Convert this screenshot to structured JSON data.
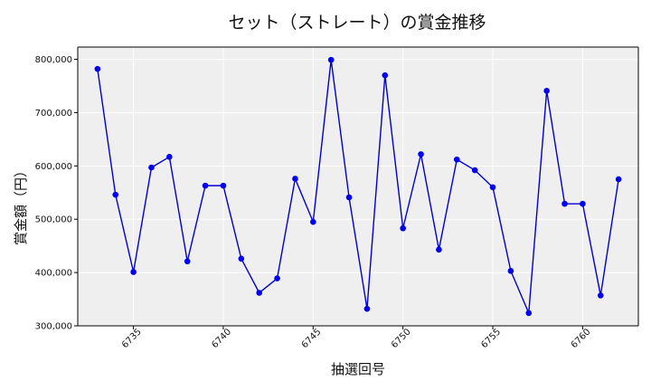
{
  "chart_data": {
    "type": "line",
    "title": "セット（ストレート）の賞金推移",
    "xlabel": "抽選回号",
    "ylabel": "賞金額（円）",
    "xlim": [
      6731.9,
      6763.1
    ],
    "ylim": [
      300000,
      823000
    ],
    "xticks": [
      6735,
      6740,
      6745,
      6750,
      6755,
      6760
    ],
    "yticks": [
      300000,
      400000,
      500000,
      600000,
      700000,
      800000
    ],
    "ytick_labels": [
      "300,000",
      "400,000",
      "500,000",
      "600,000",
      "700,000",
      "800,000"
    ],
    "grid": true,
    "colors": {
      "line": "#0000cc",
      "marker": "#0000ee",
      "plot_bg": "#efefef",
      "grid": "#ffffff"
    },
    "series": [
      {
        "x": [
          6733,
          6734,
          6735,
          6736,
          6737,
          6738,
          6739,
          6740,
          6741,
          6742,
          6743,
          6744,
          6745,
          6746,
          6747,
          6748,
          6749,
          6750,
          6751,
          6752,
          6753,
          6754,
          6755,
          6756,
          6757,
          6758,
          6759,
          6760,
          6761,
          6762
        ],
        "values": [
          782000,
          546000,
          401000,
          597000,
          617000,
          421000,
          563000,
          563000,
          426000,
          362000,
          389000,
          576000,
          495000,
          799000,
          541000,
          332000,
          770000,
          483000,
          622000,
          443000,
          612000,
          592000,
          560000,
          403000,
          324000,
          741000,
          529000,
          529000,
          357000,
          575000
        ]
      }
    ]
  }
}
